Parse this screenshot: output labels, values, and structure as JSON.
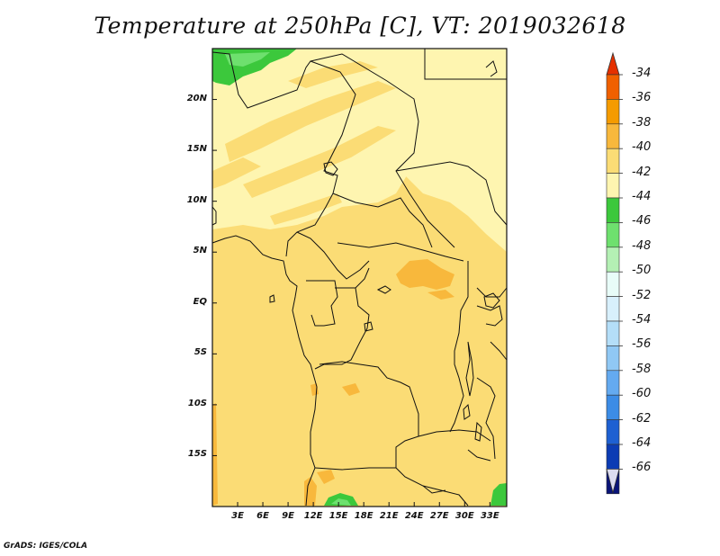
{
  "title": "Temperature at 250hPa [C], VT: 2019032618",
  "credit": "GrADS: IGES/COLA",
  "map": {
    "lon_range": [
      0,
      35
    ],
    "lat_range": [
      -20,
      25
    ],
    "y_ticks": [
      {
        "label": "20N",
        "lat": 20
      },
      {
        "label": "15N",
        "lat": 15
      },
      {
        "label": "10N",
        "lat": 10
      },
      {
        "label": "5N",
        "lat": 5
      },
      {
        "label": "EQ",
        "lat": 0
      },
      {
        "label": "5S",
        "lat": -5
      },
      {
        "label": "10S",
        "lat": -10
      },
      {
        "label": "15S",
        "lat": -15
      }
    ],
    "x_ticks": [
      {
        "label": "3E",
        "lon": 3
      },
      {
        "label": "6E",
        "lon": 6
      },
      {
        "label": "9E",
        "lon": 9
      },
      {
        "label": "12E",
        "lon": 12
      },
      {
        "label": "15E",
        "lon": 15
      },
      {
        "label": "18E",
        "lon": 18
      },
      {
        "label": "21E",
        "lon": 21
      },
      {
        "label": "24E",
        "lon": 24
      },
      {
        "label": "27E",
        "lon": 27
      },
      {
        "label": "30E",
        "lon": 30
      },
      {
        "label": "33E",
        "lon": 33
      }
    ]
  },
  "colorbar": {
    "levels": [
      {
        "label": "-34",
        "color": "#e53000"
      },
      {
        "label": "-36",
        "color": "#f06000"
      },
      {
        "label": "-38",
        "color": "#f59b00"
      },
      {
        "label": "-40",
        "color": "#f8b83c"
      },
      {
        "label": "-42",
        "color": "#fbdc75"
      },
      {
        "label": "-44",
        "color": "#fef5b0"
      },
      {
        "label": "-46",
        "color": "#3cc83c"
      },
      {
        "label": "-48",
        "color": "#6ee06e"
      },
      {
        "label": "-50",
        "color": "#b4f0b4"
      },
      {
        "label": "-52",
        "color": "#e8fcf8"
      },
      {
        "label": "-54",
        "color": "#d8f0fc"
      },
      {
        "label": "-56",
        "color": "#b4def8"
      },
      {
        "label": "-58",
        "color": "#90c8f4"
      },
      {
        "label": "-60",
        "color": "#64aaf0"
      },
      {
        "label": "-62",
        "color": "#3c8ce6"
      },
      {
        "label": "-64",
        "color": "#1e60d2"
      },
      {
        "label": "-66",
        "color": "#0c3cb4"
      }
    ],
    "top_cap_color": "#e53000",
    "bottom_cap_color": "#0a1478",
    "bottom_arrow_color": "#dcdcf0"
  }
}
